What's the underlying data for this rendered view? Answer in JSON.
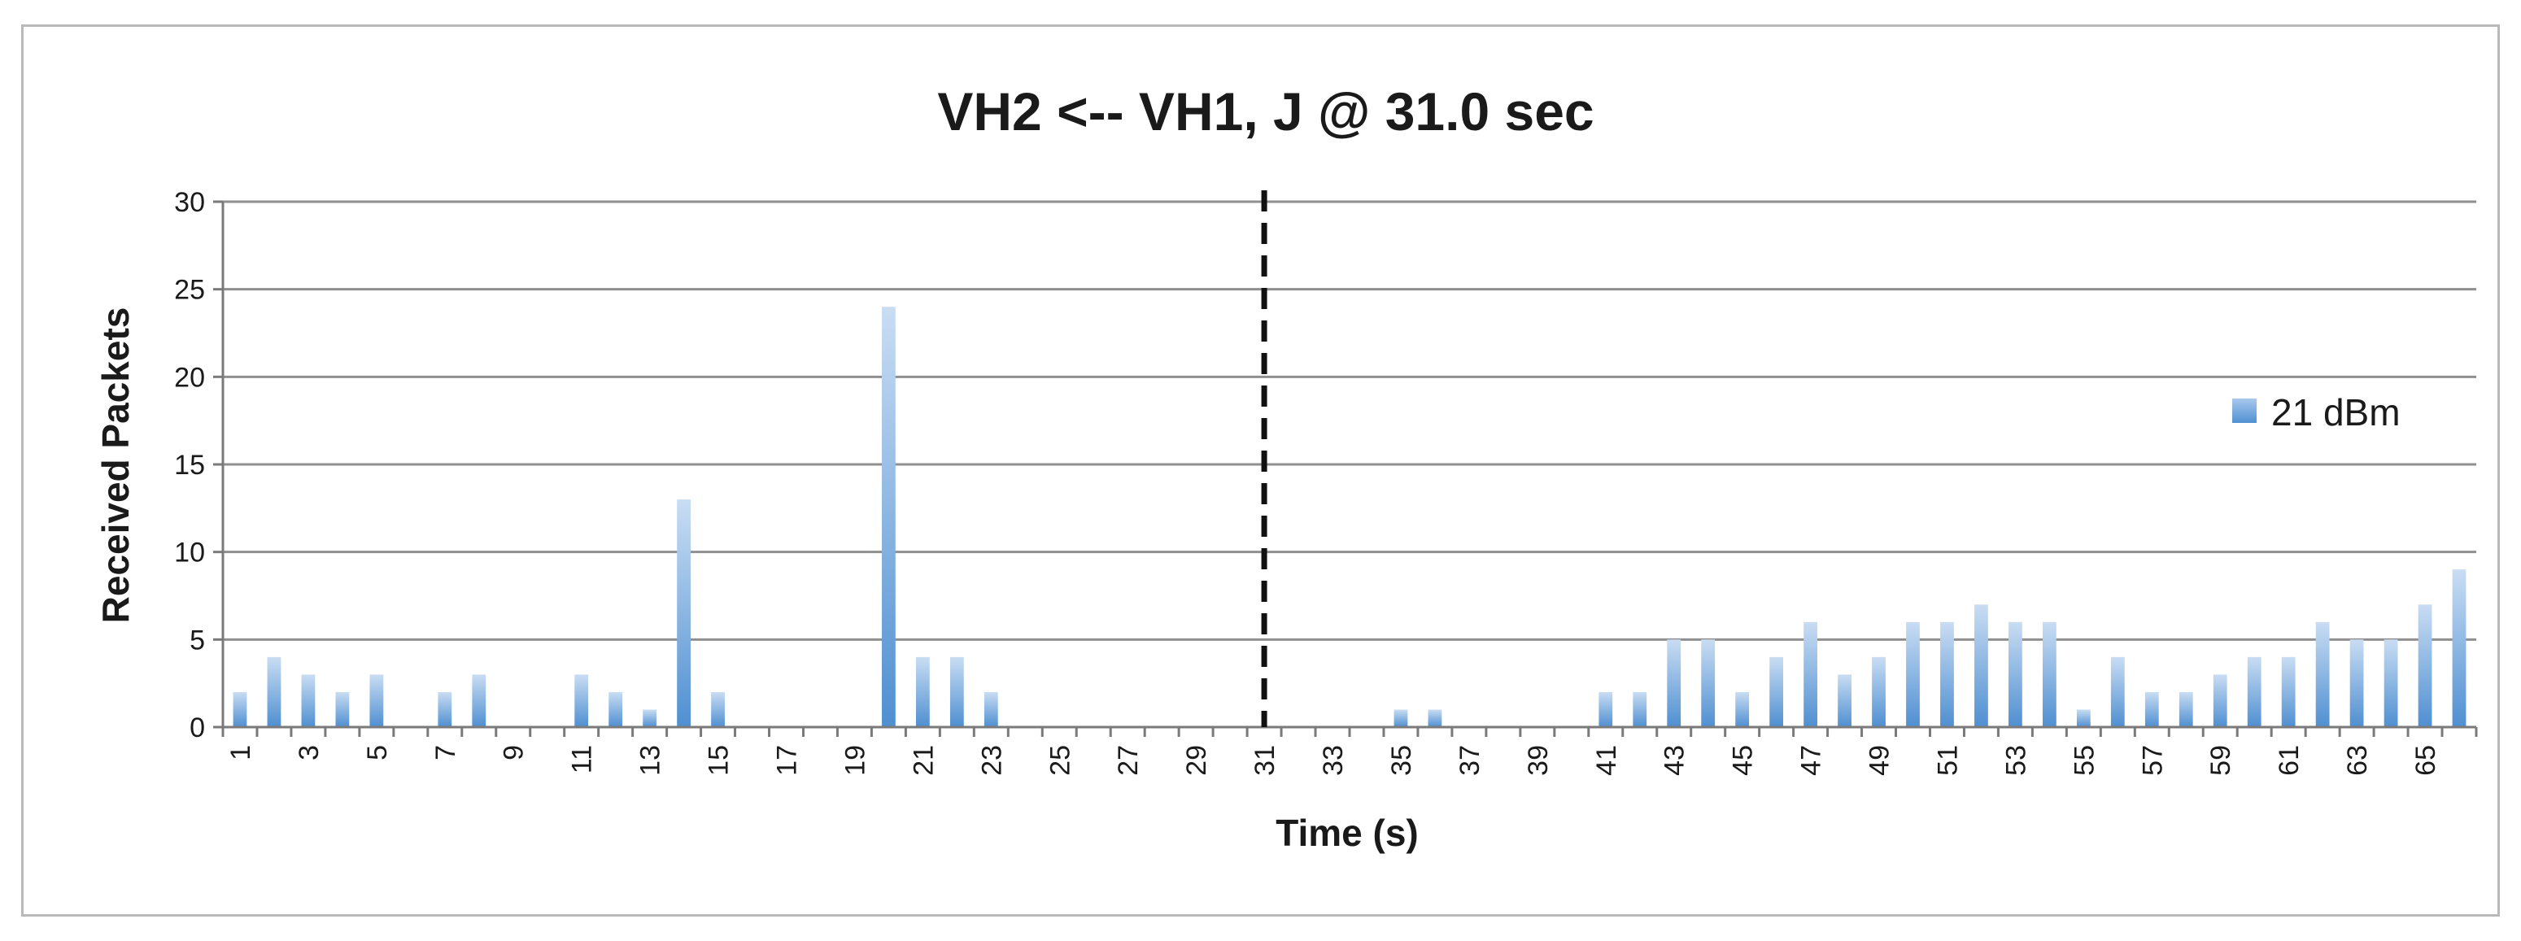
{
  "chart_data": {
    "type": "bar",
    "title": "VH2 <-- VH1, J @ 31.0 sec",
    "xlabel": "Time (s)",
    "ylabel": "Received Packets",
    "ylim": [
      0,
      30
    ],
    "yticks": [
      "0",
      "5",
      "10",
      "15",
      "20",
      "25",
      "30"
    ],
    "xlim": [
      1,
      66
    ],
    "xtick_labels": [
      "1",
      "3",
      "5",
      "7",
      "9",
      "11",
      "13",
      "15",
      "17",
      "19",
      "21",
      "23",
      "25",
      "27",
      "29",
      "31",
      "33",
      "35",
      "37",
      "39",
      "41",
      "43",
      "45",
      "47",
      "49",
      "51",
      "53",
      "55",
      "57",
      "59",
      "61",
      "63",
      "65"
    ],
    "grid": "horizontal",
    "legend_position": "right",
    "series": [
      {
        "name": "21 dBm",
        "color": "#5b9bd5",
        "x": [
          1,
          2,
          3,
          4,
          5,
          6,
          7,
          8,
          9,
          10,
          11,
          12,
          13,
          14,
          15,
          16,
          17,
          18,
          19,
          20,
          21,
          22,
          23,
          24,
          25,
          26,
          27,
          28,
          29,
          30,
          31,
          32,
          33,
          34,
          35,
          36,
          37,
          38,
          39,
          40,
          41,
          42,
          43,
          44,
          45,
          46,
          47,
          48,
          49,
          50,
          51,
          52,
          53,
          54,
          55,
          56,
          57,
          58,
          59,
          60,
          61,
          62,
          63,
          64,
          65,
          66
        ],
        "values": [
          2,
          4,
          3,
          2,
          3,
          0,
          2,
          3,
          0,
          0,
          3,
          2,
          1,
          13,
          2,
          0,
          0,
          0,
          0,
          24,
          4,
          4,
          2,
          0,
          0,
          0,
          0,
          0,
          0,
          0,
          0,
          0,
          0,
          0,
          1,
          1,
          0,
          0,
          0,
          0,
          2,
          2,
          5,
          5,
          2,
          4,
          6,
          3,
          4,
          6,
          6,
          7,
          6,
          6,
          1,
          4,
          2,
          2,
          3,
          4,
          4,
          6,
          5,
          5,
          7,
          9
        ]
      }
    ],
    "annotations": [
      {
        "type": "vertical-dashed-line",
        "x": 31
      }
    ]
  }
}
